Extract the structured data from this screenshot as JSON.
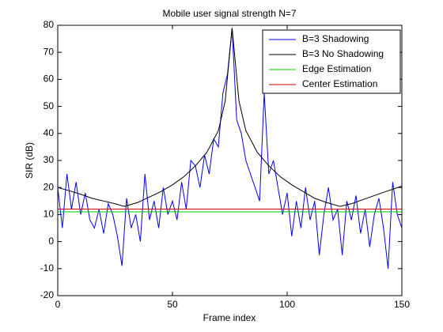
{
  "chart_data": {
    "type": "line",
    "title": "Mobile user signal strength N=7",
    "xlabel": "Frame index",
    "ylabel": "SIR (dB)",
    "xlim": [
      0,
      150
    ],
    "xticks": [
      0,
      50,
      100,
      150
    ],
    "ylim": [
      -20,
      80
    ],
    "yticks": [
      -20,
      -10,
      0,
      10,
      20,
      30,
      40,
      50,
      60,
      70,
      80
    ],
    "legend": "upper right",
    "series": [
      {
        "name": "B=3 Shadowing",
        "color": "#0000ff",
        "x": [
          0,
          2,
          4,
          6,
          8,
          10,
          12,
          14,
          16,
          18,
          20,
          22,
          24,
          26,
          28,
          30,
          32,
          34,
          36,
          38,
          40,
          42,
          44,
          46,
          48,
          50,
          52,
          54,
          56,
          58,
          60,
          62,
          64,
          66,
          68,
          70,
          72,
          74,
          76,
          78,
          80,
          82,
          84,
          86,
          88,
          90,
          92,
          94,
          96,
          98,
          100,
          102,
          104,
          106,
          108,
          110,
          112,
          114,
          116,
          118,
          120,
          122,
          124,
          126,
          128,
          130,
          132,
          134,
          136,
          138,
          140,
          142,
          144,
          146,
          148,
          150
        ],
        "values": [
          20,
          5,
          25,
          12,
          22,
          10,
          18,
          8,
          5,
          12,
          3,
          14,
          10,
          2,
          -9,
          16,
          5,
          10,
          0,
          25,
          8,
          15,
          5,
          20,
          10,
          15,
          8,
          22,
          12,
          30,
          28,
          20,
          32,
          25,
          38,
          35,
          55,
          62,
          79,
          45,
          40,
          30,
          25,
          20,
          15,
          55,
          25,
          30,
          20,
          10,
          18,
          2,
          15,
          5,
          20,
          8,
          15,
          -5,
          10,
          20,
          8,
          12,
          -5,
          15,
          8,
          17,
          3,
          12,
          -2,
          10,
          16,
          5,
          -10,
          22,
          10,
          5
        ]
      },
      {
        "name": "B=3 No Shadowing",
        "color": "#000000",
        "x": [
          0,
          5,
          10,
          15,
          20,
          25,
          29,
          35,
          40,
          45,
          50,
          55,
          60,
          65,
          70,
          73,
          75,
          76,
          77,
          79,
          82,
          87,
          92,
          97,
          102,
          107,
          112,
          117,
          123,
          128,
          133,
          138,
          143,
          150
        ],
        "values": [
          20,
          18.8,
          17.5,
          16,
          15,
          14,
          13,
          14.5,
          16.5,
          18.5,
          21,
          24,
          28,
          33,
          41,
          52,
          70,
          79,
          70,
          52,
          41,
          33,
          28,
          24,
          21,
          18.5,
          16,
          14.5,
          13,
          14,
          15.5,
          17,
          18.5,
          20.5
        ]
      },
      {
        "name": "Edge Estimation",
        "color": "#00cc00",
        "x": [
          0,
          150
        ],
        "values": [
          11,
          11
        ]
      },
      {
        "name": "Center Estimation",
        "color": "#cc0000",
        "x": [
          0,
          150
        ],
        "values": [
          12,
          12
        ]
      }
    ]
  }
}
